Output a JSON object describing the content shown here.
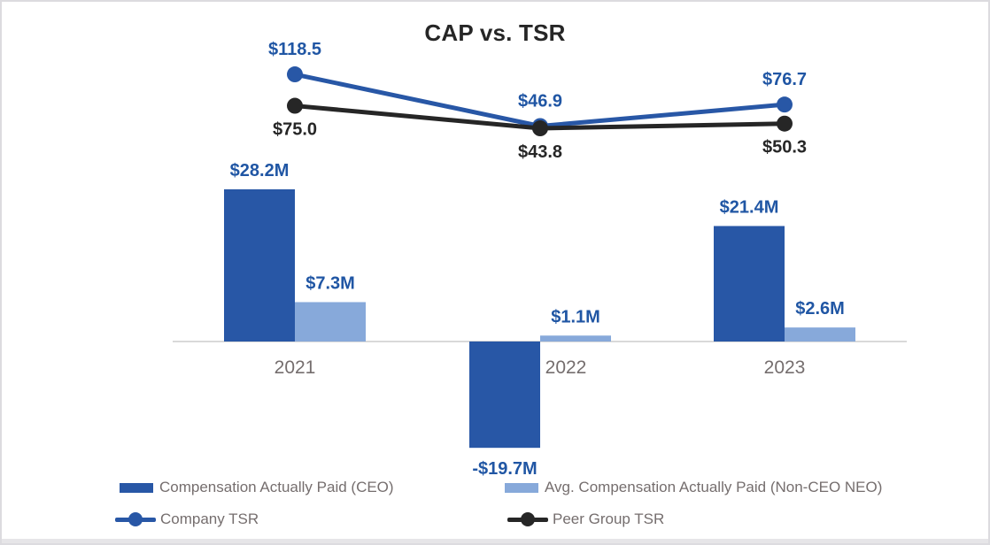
{
  "chart_data": {
    "type": "combo",
    "title": "CAP vs. TSR",
    "categories": [
      "2021",
      "2022",
      "2023"
    ],
    "bar_series": [
      {
        "key": "cap-ceo",
        "name": "Compensation Actually Paid (CEO)",
        "values": [
          28.2,
          -19.7,
          21.4
        ],
        "labels": [
          "$28.2M",
          "-$19.7M",
          "$21.4M"
        ],
        "color": "#2857A6"
      },
      {
        "key": "cap-neo",
        "name": "Avg. Compensation Actually Paid (Non-CEO NEO)",
        "values": [
          7.3,
          1.1,
          2.6
        ],
        "labels": [
          "$7.3M",
          "$1.1M",
          "$2.6M"
        ],
        "color": "#87A9DA"
      }
    ],
    "line_series": [
      {
        "key": "company-tsr",
        "name": "Company TSR",
        "values": [
          118.5,
          46.9,
          76.7
        ],
        "labels": [
          "$118.5",
          "$46.9",
          "$76.7"
        ],
        "color": "#2857A6",
        "label_color": "#2056A4",
        "label_side": "above"
      },
      {
        "key": "peer-tsr",
        "name": "Peer Group TSR",
        "values": [
          75.0,
          43.8,
          50.3
        ],
        "labels": [
          "$75.0",
          "$43.8",
          "$50.3"
        ],
        "color": "#262626",
        "label_color": "#262626",
        "label_side": "below"
      }
    ],
    "legend": [
      {
        "type": "bar",
        "series": 0,
        "label": "Compensation Actually Paid (CEO)"
      },
      {
        "type": "bar",
        "series": 1,
        "label": "Avg. Compensation Actually Paid (Non-CEO NEO)"
      },
      {
        "type": "line",
        "series": 0,
        "label": "Company TSR"
      },
      {
        "type": "line",
        "series": 1,
        "label": "Peer Group TSR"
      }
    ],
    "legend_position": "bottom",
    "grid": false,
    "y_axis_labels_visible": false,
    "colors": {
      "value_label": "#2056A4",
      "axis_line": "#D9D9D9",
      "category_label": "#756E6E",
      "legend_text": "#756E6E",
      "title_text": "#262626",
      "border": "#DCDBDF",
      "bottom_strip": "#E6E5E8"
    }
  }
}
